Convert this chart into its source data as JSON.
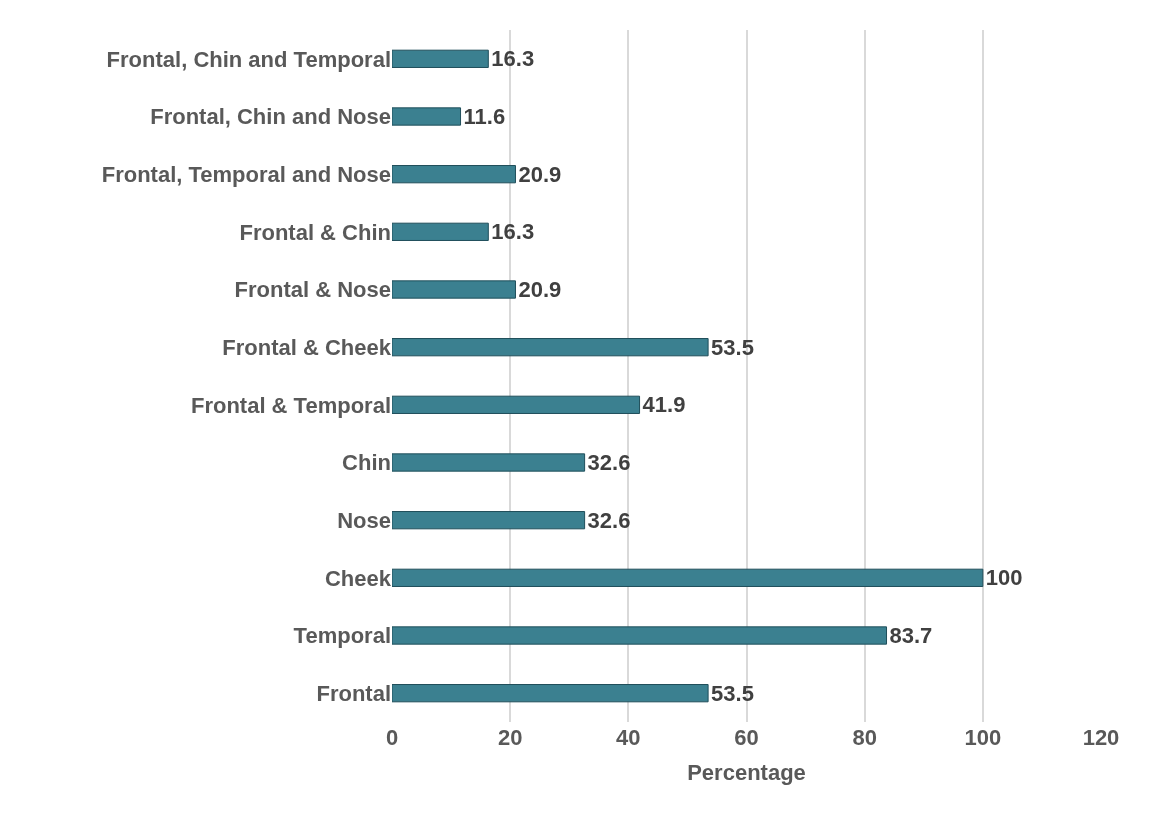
{
  "chart_data": {
    "type": "bar",
    "orientation": "horizontal",
    "xlabel": "Percentage",
    "categories": [
      "Frontal, Chin and Temporal",
      "Frontal, Chin and Nose",
      "Frontal, Temporal and Nose",
      "Frontal & Chin",
      "Frontal & Nose",
      "Frontal & Cheek",
      "Frontal & Temporal",
      "Chin",
      "Nose",
      "Cheek",
      "Temporal",
      "Frontal"
    ],
    "values": [
      16.3,
      11.6,
      20.9,
      16.3,
      20.9,
      53.5,
      41.9,
      32.6,
      32.6,
      100,
      83.7,
      53.5
    ],
    "color": "#3b8090",
    "xlim": [
      0,
      120
    ],
    "xticks": [
      0,
      20,
      40,
      60,
      80,
      100,
      120
    ],
    "grid": "x",
    "data_labels": true
  }
}
